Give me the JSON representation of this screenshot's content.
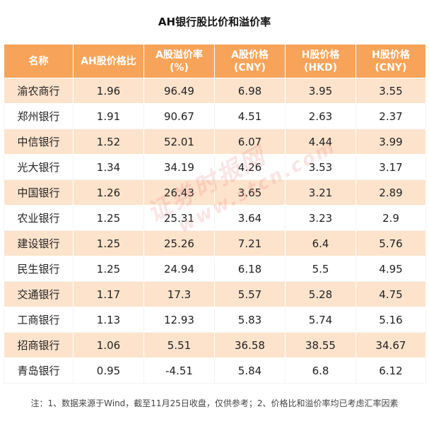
{
  "title": "AH银行股比价和溢价率",
  "headers": [
    "名称",
    "AH股价格比",
    "A股溢价率\n(%)",
    "A股价格\n(CNY)",
    "H股价格\n(HKD)",
    "H股价格\n(CNY)"
  ],
  "rows": [
    [
      "渝农商行",
      "1.96",
      "96.49",
      "6.98",
      "3.95",
      "3.55"
    ],
    [
      "郑州银行",
      "1.91",
      "90.67",
      "4.51",
      "2.63",
      "2.37"
    ],
    [
      "中信银行",
      "1.52",
      "52.01",
      "6.07",
      "4.44",
      "3.99"
    ],
    [
      "光大银行",
      "1.34",
      "34.19",
      "4.26",
      "3.53",
      "3.17"
    ],
    [
      "中国银行",
      "1.26",
      "26.43",
      "3.65",
      "3.21",
      "2.89"
    ],
    [
      "农业银行",
      "1.25",
      "25.31",
      "3.64",
      "3.23",
      "2.9"
    ],
    [
      "建设银行",
      "1.25",
      "25.26",
      "7.21",
      "6.4",
      "5.76"
    ],
    [
      "民生银行",
      "1.25",
      "24.94",
      "6.18",
      "5.5",
      "4.95"
    ],
    [
      "交通银行",
      "1.17",
      "17.3",
      "5.57",
      "5.28",
      "4.75"
    ],
    [
      "工商银行",
      "1.13",
      "12.93",
      "5.83",
      "5.74",
      "5.16"
    ],
    [
      "招商银行",
      "1.06",
      "5.51",
      "36.58",
      "38.55",
      "34.67"
    ],
    [
      "青岛银行",
      "0.95",
      "-4.51",
      "5.84",
      "6.8",
      "6.12"
    ]
  ],
  "watermark": {
    "name": "证券时报网",
    "url": "www.stcn.com"
  },
  "note": "注：1、数据来源于Wind，截至11月25日收盘，仅供参考；2、价格比和溢价率均已考虑汇率因素"
}
